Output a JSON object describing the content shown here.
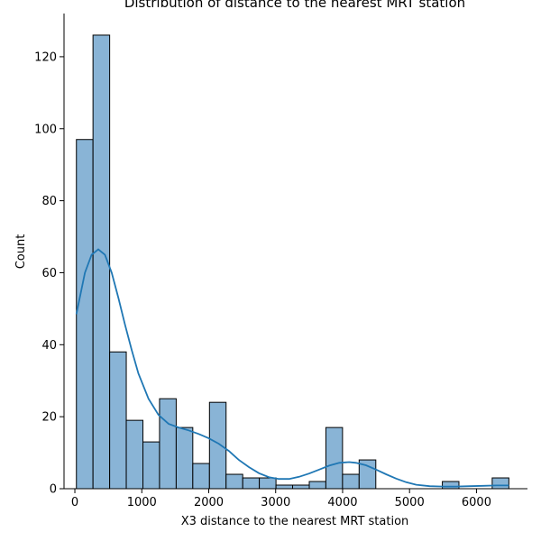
{
  "chart_data": {
    "type": "bar",
    "title": "Distribution of distance to the nearest MRT station",
    "xlabel": "X3 distance to the nearest MRT station",
    "ylabel": "Count",
    "xlim": [
      -162,
      6762
    ],
    "ylim": [
      0,
      132
    ],
    "xticks": [
      0,
      1000,
      2000,
      3000,
      4000,
      5000,
      6000
    ],
    "yticks": [
      0,
      20,
      40,
      60,
      80,
      100,
      120
    ],
    "grid": false,
    "bin_edges": [
      23,
      271,
      520,
      768,
      1017,
      1265,
      1514,
      1762,
      2011,
      2259,
      2508,
      2756,
      3005,
      3253,
      3502,
      3750,
      3999,
      4247,
      4496,
      4744,
      4993,
      5241,
      5490,
      5738,
      5987,
      6235,
      6484
    ],
    "counts": [
      97,
      126,
      38,
      19,
      13,
      25,
      17,
      7,
      24,
      4,
      3,
      3,
      1,
      1,
      2,
      17,
      4,
      8,
      0,
      0,
      0,
      0,
      2,
      0,
      0,
      3
    ],
    "kde": {
      "x": [
        23,
        150,
        250,
        350,
        450,
        550,
        650,
        750,
        850,
        950,
        1100,
        1250,
        1400,
        1550,
        1700,
        1850,
        2000,
        2150,
        2300,
        2450,
        2600,
        2750,
        2900,
        3050,
        3200,
        3350,
        3500,
        3650,
        3800,
        3950,
        4100,
        4200,
        4350,
        4500,
        4650,
        4800,
        4950,
        5100,
        5300,
        5500,
        5700,
        5900,
        6100,
        6300,
        6484
      ],
      "y": [
        48.5,
        60,
        65,
        66.5,
        65,
        60,
        53,
        45.5,
        38.5,
        32,
        25,
        20.5,
        18,
        17,
        16.2,
        15.2,
        14,
        12.5,
        10.5,
        8,
        6,
        4.3,
        3.2,
        2.7,
        2.7,
        3.3,
        4.2,
        5.3,
        6.4,
        7.2,
        7.4,
        7.2,
        6.5,
        5.3,
        4,
        2.8,
        1.8,
        1.1,
        0.7,
        0.6,
        0.6,
        0.7,
        0.8,
        0.9,
        0.9
      ]
    },
    "colors": {
      "bar_fill": "#89b4d6",
      "bar_edge": "#000000",
      "kde_line": "#1f77b4"
    }
  }
}
